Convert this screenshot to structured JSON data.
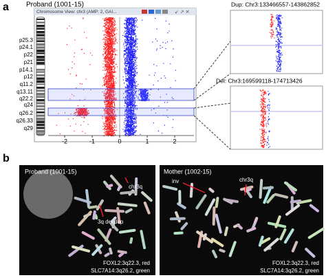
{
  "panel_a": {
    "label": "a",
    "title": "Proband (1001-15)",
    "window_title": "Chromosome View: chr3 (AMP: 2, GAI...",
    "bands": [
      "p25.3",
      "p24.1",
      "p22",
      "p21",
      "p14.1",
      "p12",
      "q11.2",
      "q13.11",
      "q22.2",
      "q24",
      "q26.2",
      "q26.33",
      "q29"
    ],
    "xlim": [
      -2.6,
      2.7
    ],
    "xticks": [
      -2,
      -1,
      0,
      1,
      2
    ],
    "dup_inset_title": "Dup: Chr3:133466557-143862852",
    "del_inset_title": "Del: Chr3:169599118-174713426"
  },
  "panel_b": {
    "label": "b",
    "proband": {
      "title": "Proband (1001-15)",
      "annotations": [
        "chr3q",
        "3q del,dup"
      ],
      "caption": [
        "FOXL2:3q22.3, red",
        "SLC7A14:3q26.2, green"
      ]
    },
    "mother": {
      "title": "Mother (1002-15)",
      "annotations": [
        "inv",
        "chr3q"
      ],
      "caption": [
        "FOXL2:3q22.3, red",
        "SLC7A14:3q26.2, green"
      ]
    }
  }
}
